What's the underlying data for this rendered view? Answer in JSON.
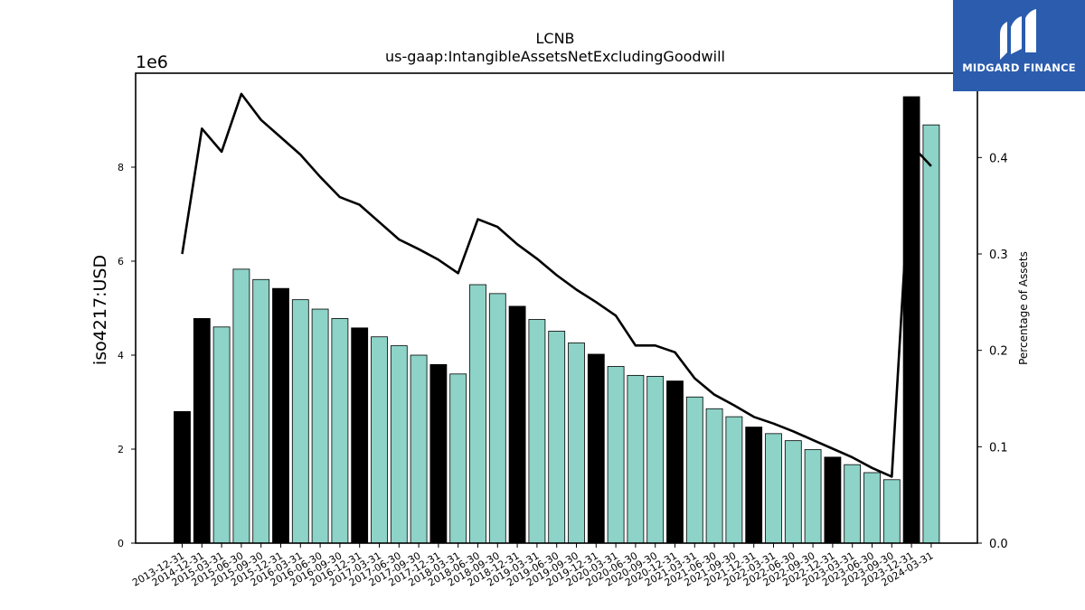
{
  "chart_data": {
    "type": "bar",
    "title": "LCNB",
    "subtitle": "us-gaap:IntangibleAssetsNetExcludingGoodwill",
    "ylabel": "iso4217:USD",
    "y_offset_label": "1e6",
    "y2label": "Percentage of Assets",
    "ylim": [
      0,
      10000000
    ],
    "y2lim": [
      0,
      0.4875
    ],
    "yticks": [
      0,
      2000000,
      4000000,
      6000000,
      8000000
    ],
    "ytick_labels": [
      "0",
      "2",
      "4",
      "6",
      "8"
    ],
    "y2ticks": [
      0.0,
      0.1,
      0.2,
      0.3,
      0.4
    ],
    "y2tick_labels": [
      "0.0",
      "0.1",
      "0.2",
      "0.3",
      "0.4"
    ],
    "grid": false,
    "colors": {
      "annual": "#000000",
      "quarterly": "#8dd3c7",
      "line": "#000000"
    },
    "categories": [
      "2013-12-31",
      "2014-12-31",
      "2015-03-31",
      "2015-06-30",
      "2015-09-30",
      "2015-12-31",
      "2016-03-31",
      "2016-06-30",
      "2016-09-30",
      "2016-12-31",
      "2017-03-31",
      "2017-06-30",
      "2017-09-30",
      "2017-12-31",
      "2018-03-31",
      "2018-06-30",
      "2018-09-30",
      "2018-12-31",
      "2019-03-31",
      "2019-06-30",
      "2019-09-30",
      "2019-12-31",
      "2020-03-31",
      "2020-06-30",
      "2020-09-30",
      "2020-12-31",
      "2021-03-31",
      "2021-06-30",
      "2021-09-30",
      "2021-12-31",
      "2022-03-31",
      "2022-06-30",
      "2022-09-30",
      "2022-12-31",
      "2023-03-31",
      "2023-06-30",
      "2023-09-30",
      "2023-12-31",
      "2024-03-31"
    ],
    "series": [
      {
        "type": "bar",
        "values": [
          2800000,
          4780000,
          4600000,
          5830000,
          5610000,
          5420000,
          5180000,
          4980000,
          4780000,
          4580000,
          4390000,
          4200000,
          4000000,
          3800000,
          3600000,
          5500000,
          5310000,
          5040000,
          4760000,
          4510000,
          4260000,
          4020000,
          3760000,
          3570000,
          3550000,
          3450000,
          3110000,
          2860000,
          2690000,
          2470000,
          2330000,
          2180000,
          1990000,
          1830000,
          1670000,
          1500000,
          1350000,
          9500000,
          8900000
        ],
        "annual_flags": [
          true,
          true,
          false,
          false,
          false,
          true,
          false,
          false,
          false,
          true,
          false,
          false,
          false,
          true,
          false,
          false,
          false,
          true,
          false,
          false,
          false,
          true,
          false,
          false,
          false,
          true,
          false,
          false,
          false,
          true,
          false,
          false,
          false,
          true,
          false,
          false,
          false,
          true,
          false
        ]
      },
      {
        "type": "line",
        "axis": "right",
        "values": [
          0.3,
          0.43,
          0.406,
          0.466,
          0.439,
          0.421,
          0.403,
          0.38,
          0.359,
          0.351,
          0.333,
          0.315,
          0.305,
          0.294,
          0.28,
          0.336,
          0.328,
          0.31,
          0.295,
          0.278,
          0.263,
          0.25,
          0.236,
          0.205,
          0.205,
          0.198,
          0.171,
          0.154,
          0.143,
          0.131,
          0.124,
          0.116,
          0.107,
          0.098,
          0.089,
          0.078,
          0.069,
          0.413,
          0.391
        ]
      }
    ]
  },
  "branding": {
    "logo_text": "MIDGARD FINANCE"
  }
}
